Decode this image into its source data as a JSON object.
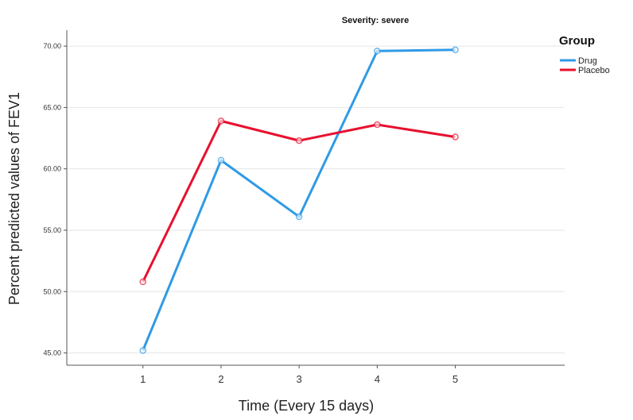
{
  "chart_data": {
    "type": "line",
    "title": "Severity: severe",
    "xlabel": "Time (Every 15 days)",
    "ylabel": "Percent predicted values of FEV1",
    "x": [
      1,
      2,
      3,
      4,
      5
    ],
    "ylim": [
      44.0,
      71.3
    ],
    "yticks": [
      "45.00",
      "50.00",
      "55.00",
      "60.00",
      "65.00",
      "70.00"
    ],
    "ytick_values": [
      45,
      50,
      55,
      60,
      65,
      70
    ],
    "grid": "horizontal",
    "legend": {
      "title": "Group",
      "position": "top-right"
    },
    "series": [
      {
        "name": "Drug",
        "color": "#2f9ae6",
        "values": [
          45.2,
          60.7,
          56.1,
          69.6,
          69.7
        ]
      },
      {
        "name": "Placebo",
        "color": "#e8102e",
        "values": [
          50.8,
          63.9,
          62.3,
          63.6,
          62.6
        ]
      }
    ]
  }
}
